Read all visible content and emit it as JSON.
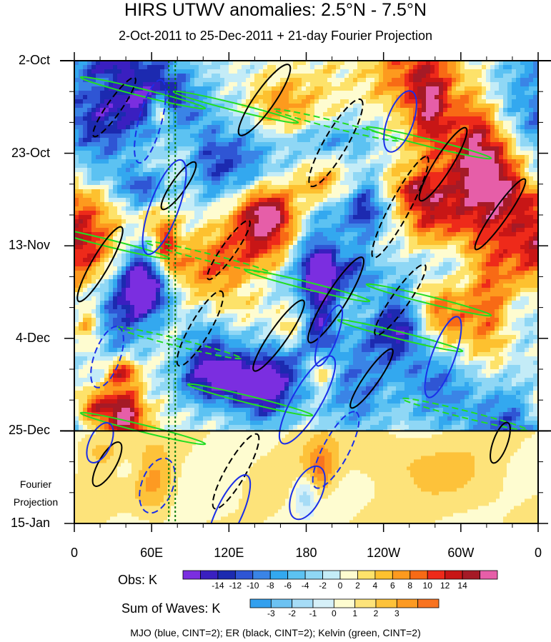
{
  "chart_data": {
    "type": "heatmap",
    "title": "HIRS UTWV anomalies: 2.5°N - 7.5°N",
    "subtitle": "2-Oct-2011 to 25-Dec-2011 + 21-day Fourier Projection",
    "x_tick_labels": [
      "0",
      "60E",
      "120E",
      "180",
      "120W",
      "60W",
      "0"
    ],
    "x_ticks_lon": [
      0,
      60,
      120,
      180,
      240,
      300,
      360
    ],
    "y_tick_labels": [
      "2-Oct",
      "23-Oct",
      "13-Nov",
      "4-Dec",
      "25-Dec",
      "15-Jan"
    ],
    "y_ticks_day": [
      0,
      21,
      42,
      63,
      84,
      105
    ],
    "projection_start_day": 84,
    "projection_label": [
      "Fourier",
      "Projection"
    ],
    "reference_lines_lon": [
      75,
      80
    ],
    "obs_colorbar": {
      "title": "Obs: K",
      "labels": [
        "-14",
        "-12",
        "-10",
        "-8",
        "-6",
        "-4",
        "-2",
        "0",
        "2",
        "4",
        "6",
        "8",
        "10",
        "12",
        "14"
      ],
      "colors": [
        "#7b2ee0",
        "#3a1fc0",
        "#1c2ab0",
        "#2f55d4",
        "#3a84e6",
        "#33a8ef",
        "#5cc2f2",
        "#8fd7f5",
        "#c4ecf7",
        "#fefcd0",
        "#fde26a",
        "#fdc12f",
        "#fd9a1e",
        "#f86a15",
        "#ee2a1a",
        "#c81616",
        "#a51a26",
        "#e65ea8"
      ]
    },
    "waves_colorbar": {
      "title": "Sum of Waves: K",
      "labels": [
        "-3",
        "-2",
        "-1",
        "0",
        "1",
        "2",
        "3"
      ],
      "colors": [
        "#33a0ee",
        "#6cc2f2",
        "#a6dcf6",
        "#d6f0f8",
        "#fefcd0",
        "#fde37a",
        "#fdc23a",
        "#fd9a22",
        "#f87320"
      ]
    },
    "footer": "MJO (blue, CINT=2); ER (black, CINT=2); Kelvin (green, CINT=2)"
  }
}
